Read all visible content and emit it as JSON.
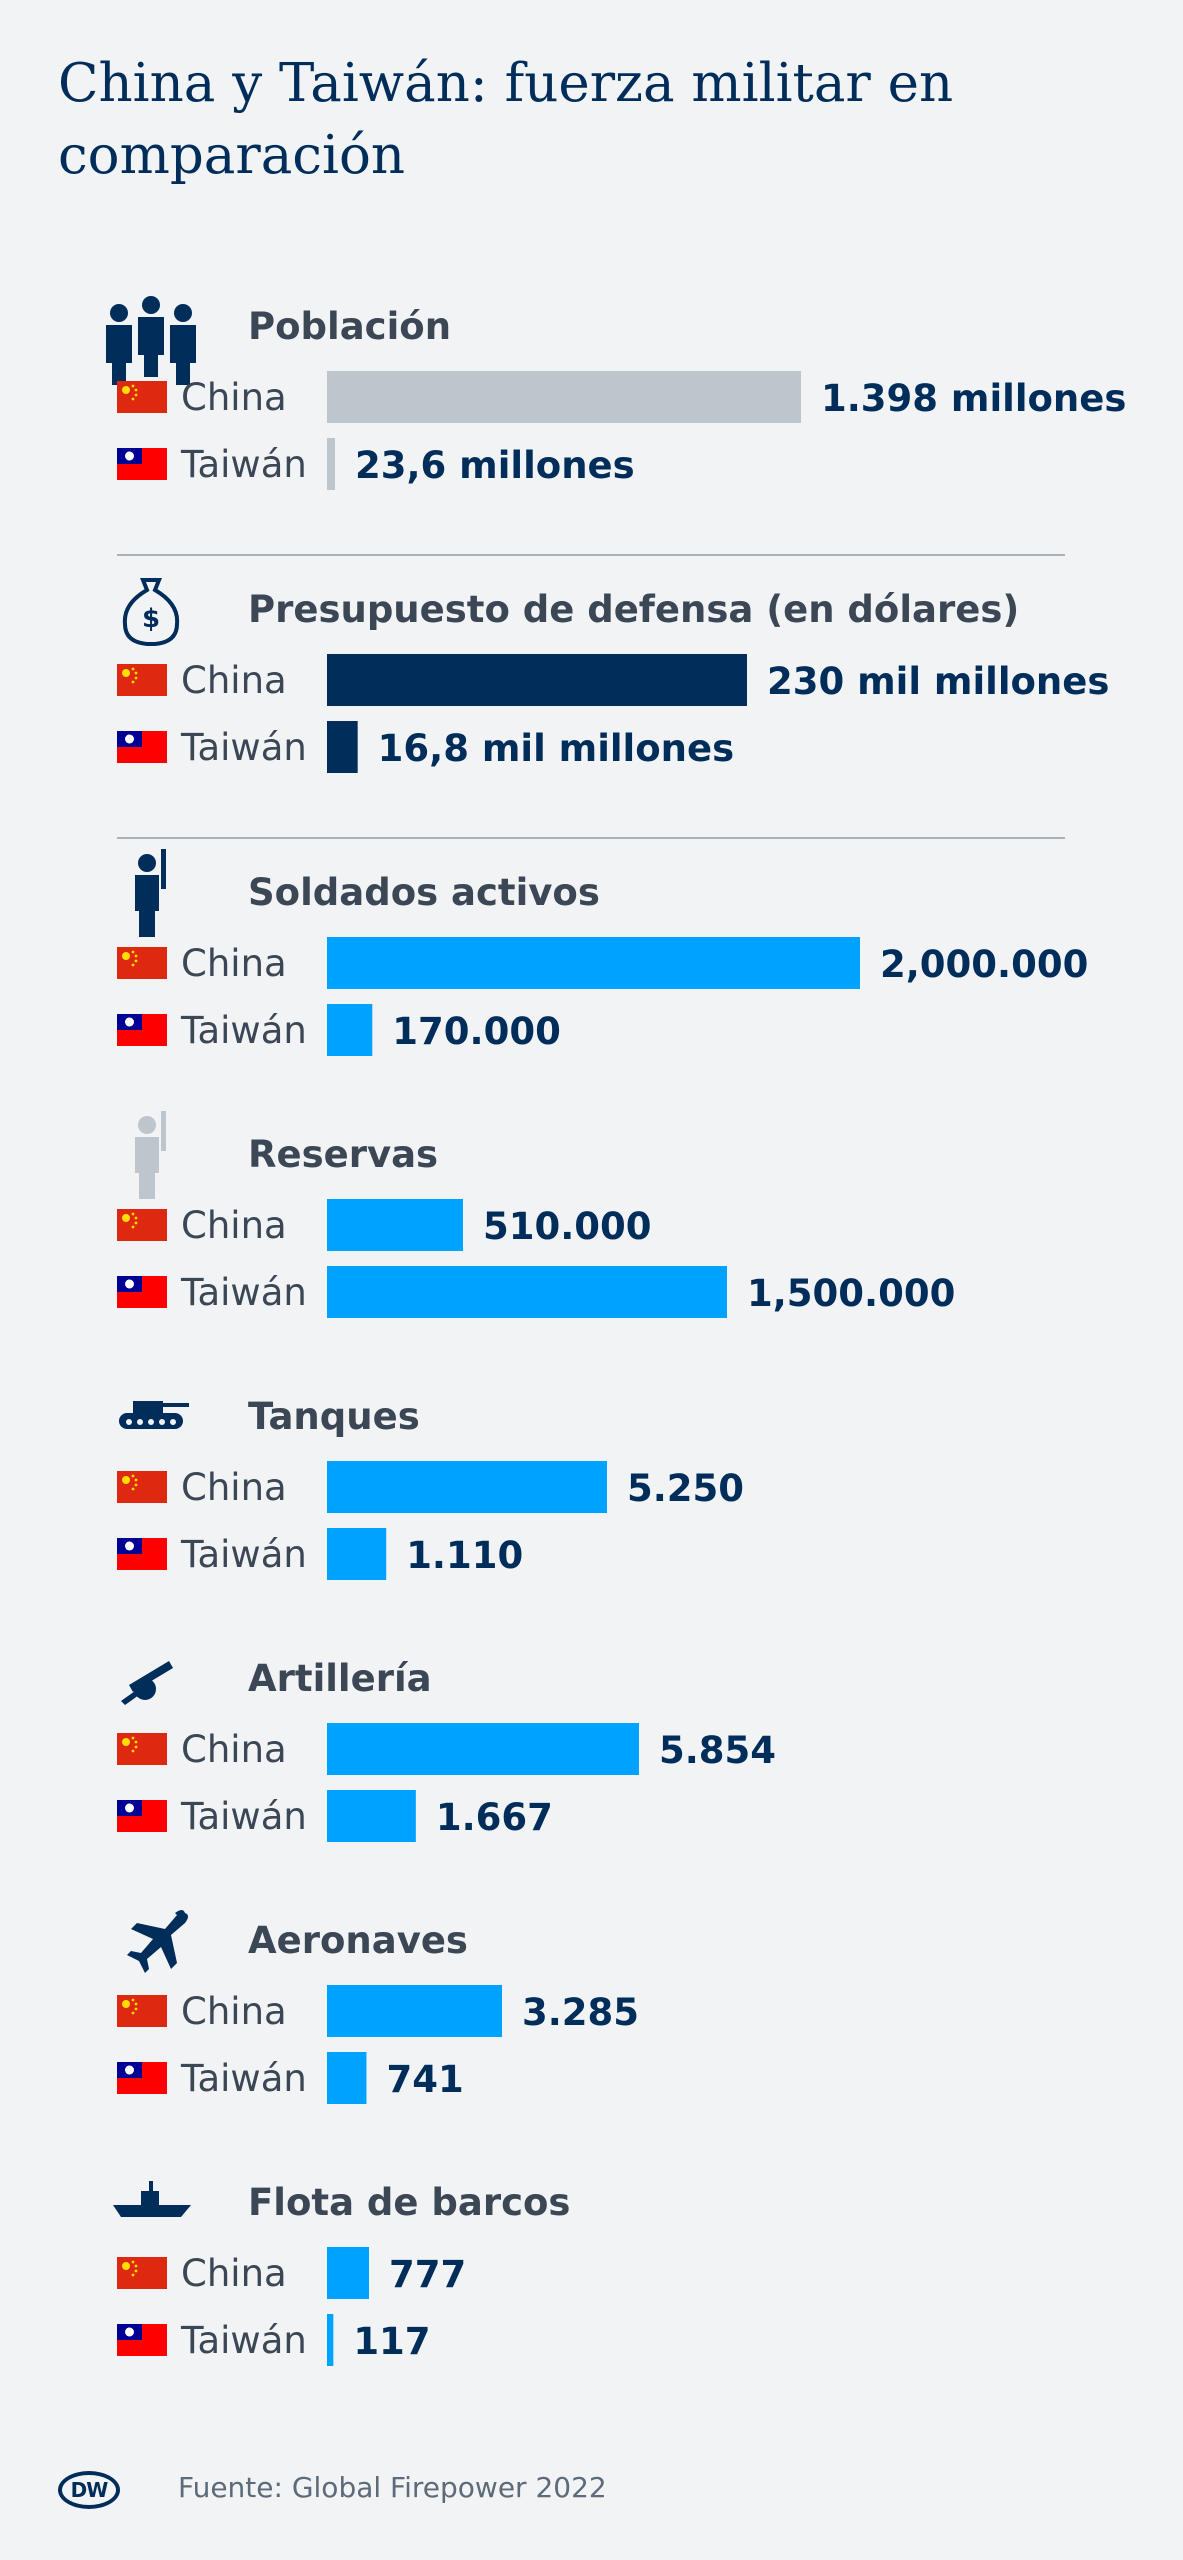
{
  "title": "China y Taiwán: fuerza militar en comparación",
  "source": "Fuente: Global Firepower 2022",
  "logo_text": "DW",
  "countries": [
    "China",
    "Taiwán"
  ],
  "colors": {
    "population": "#bdc5cd",
    "budget": "#002d5a",
    "military": "#00a2ff",
    "china_flag": "#de2910",
    "taiwan_flag_red": "#fe0000",
    "taiwan_flag_blue": "#000095"
  },
  "chart_data": [
    {
      "type": "bar",
      "title": "Población",
      "icon": "population-icon",
      "categories": [
        "China",
        "Taiwán"
      ],
      "values": [
        1398,
        23.6
      ],
      "value_labels": [
        "1.398 millones",
        "23,6 millones"
      ],
      "unit": "millones",
      "color": "#bdc5cd"
    },
    {
      "type": "bar",
      "title": "Presupuesto de defensa (en dólares)",
      "icon": "money-bag-icon",
      "categories": [
        "China",
        "Taiwán"
      ],
      "values": [
        230,
        16.8
      ],
      "value_labels": [
        "230 mil millones",
        "16,8 mil millones"
      ],
      "unit": "mil millones",
      "color": "#002d5a"
    },
    {
      "type": "bar",
      "title": "Soldados activos",
      "icon": "soldier-icon",
      "categories": [
        "China",
        "Taiwán"
      ],
      "values": [
        2000000,
        170000
      ],
      "value_labels": [
        "2,000.000",
        "170.000"
      ],
      "color": "#00a2ff"
    },
    {
      "type": "bar",
      "title": "Reservas",
      "icon": "reserve-soldier-icon",
      "categories": [
        "China",
        "Taiwán"
      ],
      "values": [
        510000,
        1500000
      ],
      "value_labels": [
        "510.000",
        "1,500.000"
      ],
      "color": "#00a2ff"
    },
    {
      "type": "bar",
      "title": "Tanques",
      "icon": "tank-icon",
      "categories": [
        "China",
        "Taiwán"
      ],
      "values": [
        5250,
        1110
      ],
      "value_labels": [
        "5.250",
        "1.110"
      ],
      "color": "#00a2ff"
    },
    {
      "type": "bar",
      "title": "Artillería",
      "icon": "artillery-icon",
      "categories": [
        "China",
        "Taiwán"
      ],
      "values": [
        5854,
        1667
      ],
      "value_labels": [
        "5.854",
        "1.667"
      ],
      "color": "#00a2ff"
    },
    {
      "type": "bar",
      "title": "Aeronaves",
      "icon": "aircraft-icon",
      "categories": [
        "China",
        "Taiwán"
      ],
      "values": [
        3285,
        741
      ],
      "value_labels": [
        "3.285",
        "741"
      ],
      "color": "#00a2ff"
    },
    {
      "type": "bar",
      "title": "Flota de barcos",
      "icon": "ship-icon",
      "categories": [
        "China",
        "Taiwán"
      ],
      "values": [
        777,
        117
      ],
      "value_labels": [
        "777",
        "117"
      ],
      "color": "#00a2ff"
    }
  ]
}
